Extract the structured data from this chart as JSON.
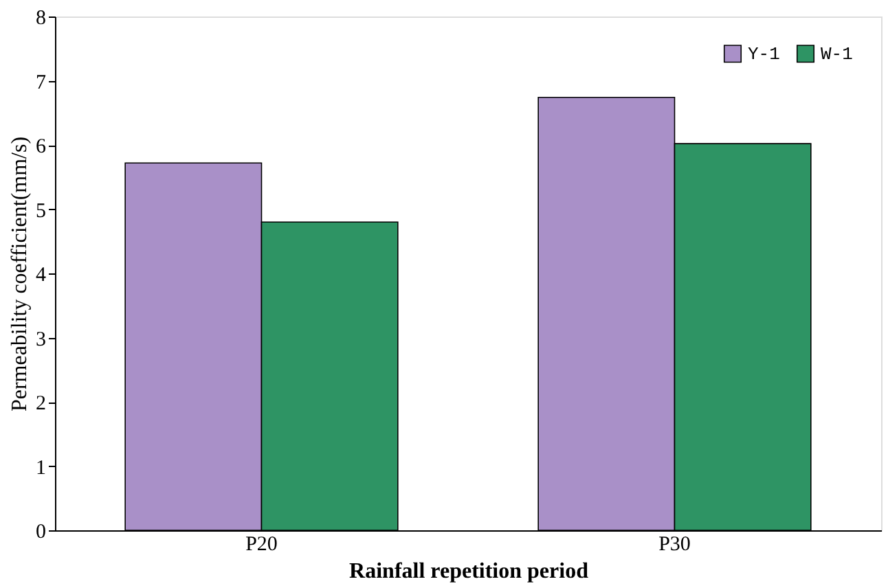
{
  "chart_data": {
    "type": "bar",
    "xlabel": "Rainfall repetition period",
    "ylabel": "Permeability coefficient(mm/s)",
    "categories": [
      "P20",
      "P30"
    ],
    "series": [
      {
        "name": "Y-1",
        "color": "#a990c8",
        "values": [
          5.72,
          6.74
        ]
      },
      {
        "name": "W-1",
        "color": "#2e9464",
        "values": [
          4.8,
          6.02
        ]
      }
    ],
    "ylim": [
      0,
      8
    ],
    "yticks": [
      0,
      1,
      2,
      3,
      4,
      5,
      6,
      7,
      8
    ],
    "grid": false,
    "legend": "top right"
  }
}
